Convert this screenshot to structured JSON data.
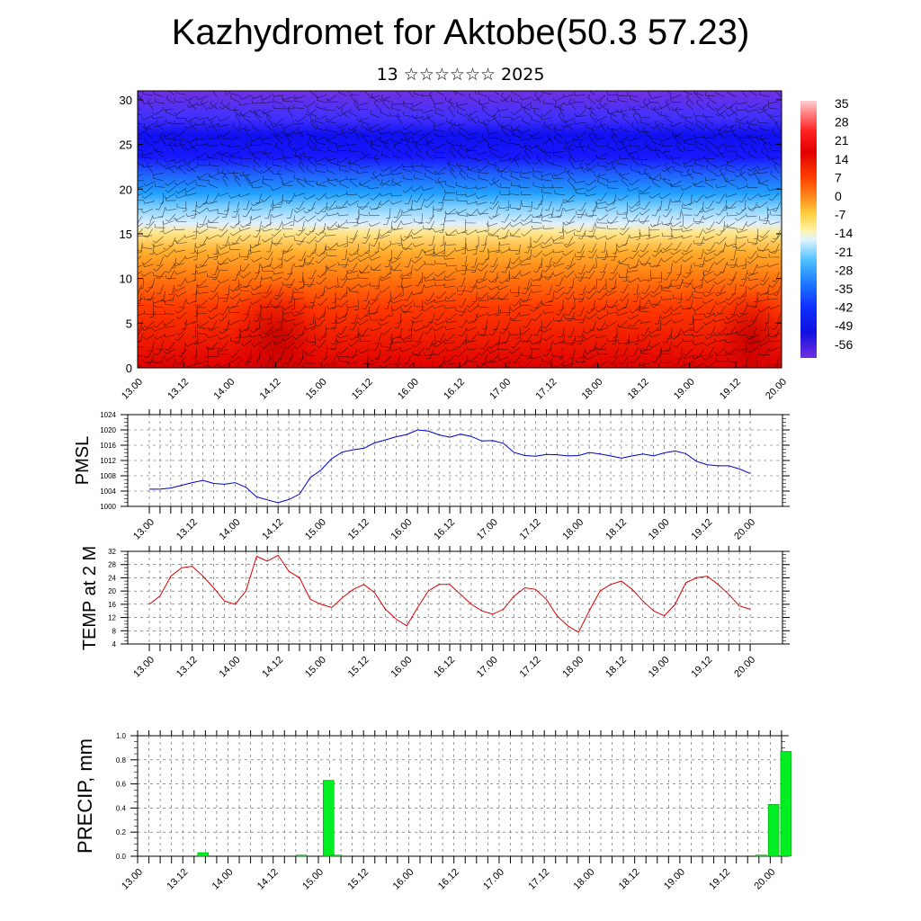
{
  "header": {
    "title": "Kazhydromet for Aktobe(50.3 57.23)",
    "subtitle": "13 ☆☆☆☆☆☆ 2025"
  },
  "time_labels": [
    "13.00",
    "13.12",
    "14.00",
    "14.12",
    "15.00",
    "15.12",
    "16.00",
    "16.12",
    "17.00",
    "17.12",
    "18.00",
    "18.12",
    "19.00",
    "19.12",
    "20.00"
  ],
  "chart_data": [
    {
      "type": "heatmap",
      "name": "cross-section",
      "y_ticks": [
        0,
        5,
        10,
        15,
        20,
        25,
        30
      ],
      "ylim": [
        0,
        31
      ],
      "colorbar_labels": [
        "35",
        "28",
        "21",
        "14",
        "7",
        "0",
        "-7",
        "-14",
        "-21",
        "-28",
        "-35",
        "-42",
        "-49",
        "-56"
      ],
      "colors": {
        "hot": "#e00000",
        "mid": "#ffe080",
        "cold": "#1010ff",
        "top": "#7030e0"
      }
    },
    {
      "type": "line",
      "ylabel": "PMSL",
      "ylim": [
        1000,
        1024
      ],
      "y_ticks": [
        1000,
        1004,
        1008,
        1012,
        1016,
        1020,
        1024
      ],
      "color": "#0000cc",
      "values": [
        1004.5,
        1004.5,
        1004.8,
        1005.5,
        1006.2,
        1006.8,
        1006.0,
        1005.8,
        1006.2,
        1005.0,
        1002.5,
        1001.7,
        1001.0,
        1001.8,
        1003.2,
        1007.5,
        1009.5,
        1012.5,
        1014.2,
        1014.8,
        1015.2,
        1016.6,
        1017.4,
        1018.2,
        1018.8,
        1020.0,
        1019.7,
        1018.7,
        1018.1,
        1018.9,
        1018.3,
        1017.1,
        1017.2,
        1016.5,
        1014.1,
        1013.3,
        1013.1,
        1013.6,
        1013.5,
        1013.2,
        1013.3,
        1014.1,
        1013.7,
        1013.2,
        1012.6,
        1013.2,
        1013.7,
        1013.2,
        1014.0,
        1014.5,
        1013.8,
        1011.8,
        1010.9,
        1010.6,
        1010.6,
        1009.8,
        1008.6
      ]
    },
    {
      "type": "line",
      "ylabel": "TEMP at 2 M",
      "ylim": [
        4,
        32
      ],
      "y_ticks": [
        4,
        8,
        12,
        16,
        20,
        24,
        28,
        32
      ],
      "color": "#dd0000",
      "values": [
        16,
        18.5,
        24.5,
        27,
        27.5,
        24.5,
        21,
        17,
        16,
        20,
        30.5,
        29,
        30.8,
        26,
        24,
        17.5,
        16,
        15,
        18,
        20.5,
        22,
        19.5,
        14.5,
        11.5,
        9.5,
        15,
        20,
        22,
        22,
        19,
        16,
        14,
        13,
        14.5,
        18.5,
        21,
        20.5,
        17.5,
        12.5,
        9.5,
        7.5,
        14,
        20,
        22,
        23,
        20.5,
        17,
        14,
        12.5,
        16,
        22.5,
        24,
        24.5,
        22,
        19,
        15.5,
        14.5
      ]
    },
    {
      "type": "bar",
      "ylabel": "PRECIP, mm",
      "ylim": [
        0,
        1
      ],
      "y_ticks": [
        "0.0",
        "0.2",
        "0.4",
        "0.6",
        "0.8",
        "1.0"
      ],
      "color": "#00ee22",
      "bars": [
        {
          "x": 5.8,
          "value": 0.03
        },
        {
          "x": 14.5,
          "value": 0.01
        },
        {
          "x": 16.9,
          "value": 0.63
        },
        {
          "x": 17.6,
          "value": 0.01
        },
        {
          "x": 55.2,
          "value": 0.01
        },
        {
          "x": 56.3,
          "value": 0.43
        },
        {
          "x": 57.4,
          "value": 0.87
        }
      ]
    }
  ]
}
